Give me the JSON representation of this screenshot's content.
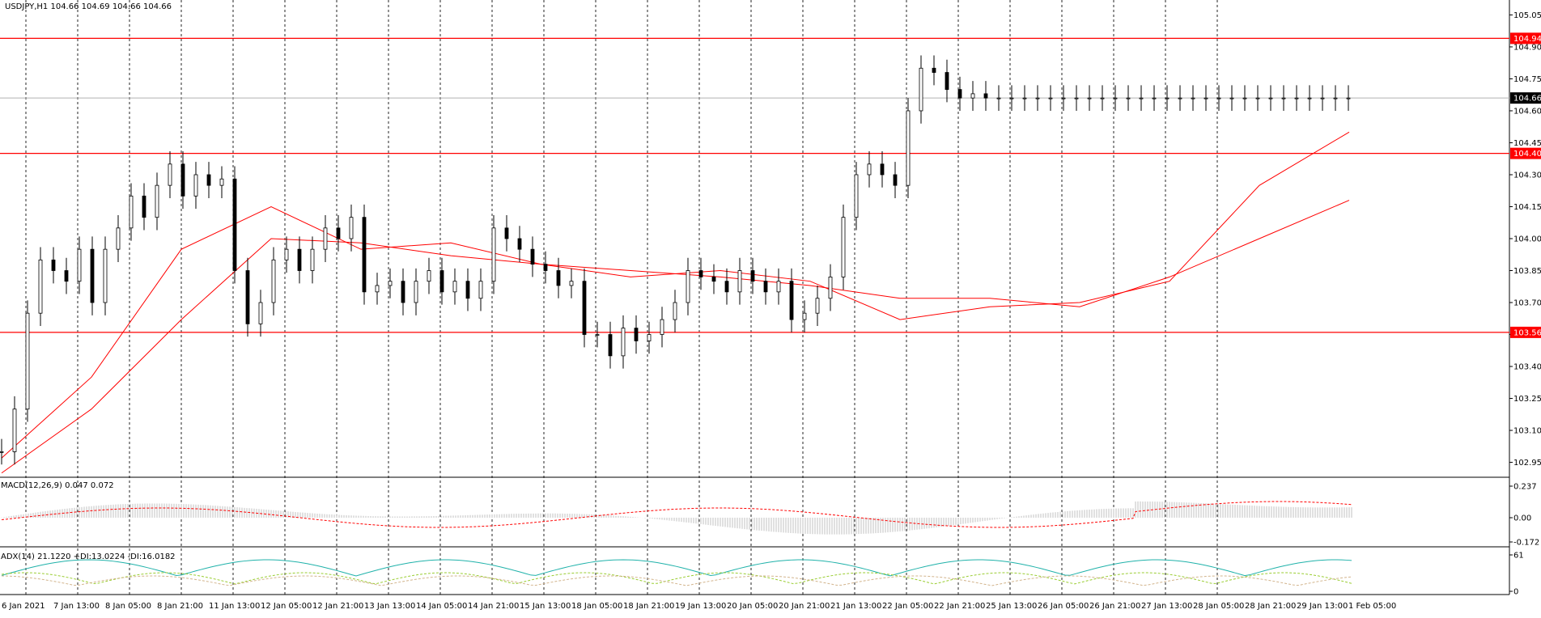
{
  "main": {
    "symbol_info": "USDJPY,H1  104.66 104.69 104.66 104.66",
    "price_axis": {
      "min": 102.88,
      "max": 105.12,
      "ticks": [
        "105.05",
        "104.90",
        "104.75",
        "104.60",
        "104.45",
        "104.30",
        "104.15",
        "104.00",
        "103.85",
        "103.70",
        "103.55",
        "103.40",
        "103.25",
        "103.10",
        "102.95"
      ]
    },
    "levels": [
      {
        "price": 104.94,
        "label": "104.94",
        "color": "#ff0000"
      },
      {
        "price": 104.4,
        "label": "104.40",
        "color": "#ff0000"
      },
      {
        "price": 103.56,
        "label": "103.56",
        "color": "#ff0000"
      }
    ],
    "current_price": {
      "price": 104.66,
      "label": "104.66"
    }
  },
  "macd": {
    "label": "MACD(12,26,9) 0.047 0.072",
    "axis_labels": [
      "0.237",
      "0.00",
      "-0.172"
    ]
  },
  "adx": {
    "label": "ADX(14) 21.1220 +DI:13.0224 -DI:16.0182",
    "axis_labels": [
      "61",
      "0"
    ]
  },
  "time_axis": {
    "labels": [
      "6 Jan 2021",
      "7 Jan 13:00",
      "8 Jan 05:00",
      "8 Jan 21:00",
      "11 Jan 13:00",
      "12 Jan 05:00",
      "12 Jan 21:00",
      "13 Jan 13:00",
      "14 Jan 05:00",
      "14 Jan 21:00",
      "15 Jan 13:00",
      "18 Jan 05:00",
      "18 Jan 21:00",
      "19 Jan 13:00",
      "20 Jan 05:00",
      "20 Jan 21:00",
      "21 Jan 13:00",
      "22 Jan 05:00",
      "22 Jan 21:00",
      "25 Jan 13:00",
      "26 Jan 05:00",
      "26 Jan 21:00",
      "27 Jan 13:00",
      "28 Jan 05:00",
      "28 Jan 21:00",
      "29 Jan 13:00",
      "1 Feb 05:00"
    ]
  },
  "chart_data": {
    "type": "candlestick",
    "symbol": "USDJPY",
    "timeframe": "H1",
    "price_series": {
      "name": "USDJPY",
      "x_index": [
        0,
        4,
        8,
        12,
        16,
        20,
        24,
        28,
        32,
        36,
        40,
        44,
        48,
        52,
        56,
        60,
        64,
        68,
        72,
        76,
        80,
        84,
        88,
        92,
        96,
        100,
        104,
        108,
        112,
        116,
        120,
        124,
        128,
        132,
        136,
        140,
        144,
        148,
        152,
        156,
        160,
        164,
        168,
        172,
        176,
        180,
        184,
        188,
        192,
        196,
        200,
        204,
        208,
        212,
        216,
        220,
        224,
        228,
        232,
        236,
        240,
        244,
        248,
        252,
        256,
        260,
        264,
        268,
        272,
        276,
        280,
        284,
        288,
        292,
        296,
        300,
        304,
        308,
        312,
        316,
        320,
        324,
        328,
        332,
        336,
        340,
        344,
        348,
        352,
        356,
        360,
        364,
        368,
        372,
        376,
        380,
        384,
        388,
        392,
        396,
        400,
        404,
        408,
        412,
        416,
        420,
        424,
        428
      ],
      "y": [
        103.0,
        103.2,
        103.65,
        103.9,
        103.85,
        103.8,
        103.95,
        103.7,
        103.95,
        104.05,
        104.2,
        104.1,
        104.25,
        104.35,
        104.2,
        104.3,
        104.25,
        104.28,
        103.85,
        103.6,
        103.7,
        103.9,
        103.95,
        103.85,
        103.95,
        104.05,
        104.0,
        104.1,
        103.75,
        103.78,
        103.8,
        103.7,
        103.8,
        103.85,
        103.75,
        103.8,
        103.72,
        103.8,
        104.05,
        104.0,
        103.95,
        103.88,
        103.85,
        103.78,
        103.8,
        103.55,
        103.55,
        103.45,
        103.58,
        103.52,
        103.55,
        103.62,
        103.7,
        103.85,
        103.82,
        103.8,
        103.75,
        103.85,
        103.8,
        103.75,
        103.8,
        103.62,
        103.65,
        103.72,
        103.82,
        104.1,
        104.3,
        104.35,
        104.3,
        104.25,
        104.6,
        104.8,
        104.78,
        104.7,
        104.66,
        104.68,
        104.66,
        104.66,
        104.66,
        104.66,
        104.66,
        104.66,
        104.66,
        104.66,
        104.66,
        104.66,
        104.66,
        104.66,
        104.66,
        104.66,
        104.66,
        104.66,
        104.66,
        104.66,
        104.66,
        104.66,
        104.66,
        104.66,
        104.66,
        104.66,
        104.66,
        104.66,
        104.66,
        104.66,
        104.66,
        104.66,
        104.66,
        104.66
      ]
    },
    "moving_averages": [
      {
        "x_index": [
          0,
          20,
          40,
          60,
          80,
          100,
          120,
          140,
          160,
          180,
          200,
          220,
          240,
          260,
          280,
          300
        ],
        "y": [
          102.97,
          103.35,
          103.95,
          104.15,
          103.95,
          103.98,
          103.88,
          103.82,
          103.85,
          103.8,
          103.62,
          103.68,
          103.7,
          103.8,
          104.25,
          104.5
        ]
      },
      {
        "x_index": [
          0,
          20,
          40,
          60,
          80,
          100,
          120,
          140,
          160,
          180,
          200,
          220,
          240,
          260,
          280,
          300
        ],
        "y": [
          102.9,
          103.2,
          103.62,
          104.0,
          103.98,
          103.92,
          103.88,
          103.85,
          103.82,
          103.78,
          103.72,
          103.72,
          103.68,
          103.82,
          104.0,
          104.18
        ]
      }
    ],
    "ylim": [
      102.88,
      105.12
    ]
  }
}
